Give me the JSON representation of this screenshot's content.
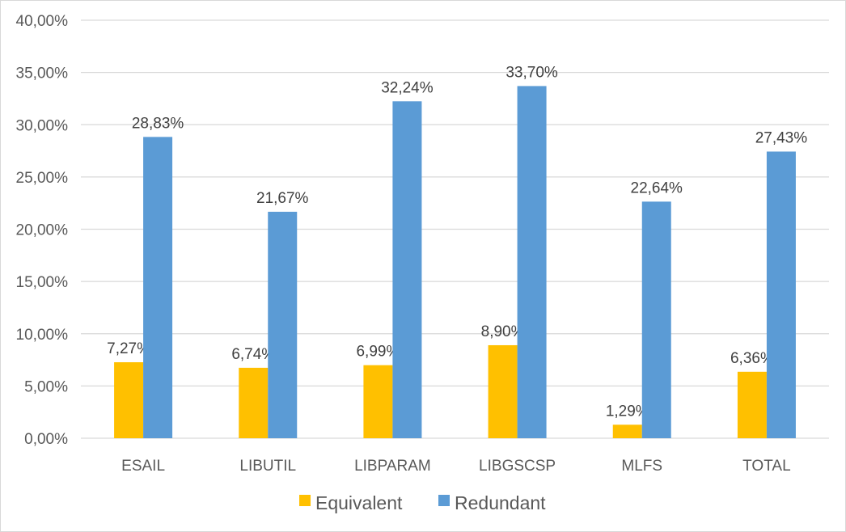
{
  "chart_data": {
    "type": "bar",
    "categories": [
      "ESAIL",
      "LIBUTIL",
      "LIBPARAM",
      "LIBGSCSP",
      "MLFS",
      "TOTAL"
    ],
    "series": [
      {
        "name": "Equivalent",
        "color": "#ffc000",
        "values": [
          7.27,
          6.74,
          6.99,
          8.9,
          1.29,
          6.36
        ],
        "labels": [
          "7,27%",
          "6,74%",
          "6,99%",
          "8,90%",
          "1,29%",
          "6,36%"
        ]
      },
      {
        "name": "Redundant",
        "color": "#5b9bd5",
        "values": [
          28.83,
          21.67,
          32.24,
          33.7,
          22.64,
          27.43
        ],
        "labels": [
          "28,83%",
          "21,67%",
          "32,24%",
          "33,70%",
          "22,64%",
          "27,43%"
        ]
      }
    ],
    "ylim": [
      0,
      40
    ],
    "yticks": [
      0,
      5,
      10,
      15,
      20,
      25,
      30,
      35,
      40
    ],
    "ytick_labels": [
      "0,00%",
      "5,00%",
      "10,00%",
      "15,00%",
      "20,00%",
      "25,00%",
      "30,00%",
      "35,00%",
      "40,00%"
    ],
    "grid": true,
    "gridline_color": "#d9d9d9",
    "legend_position": "bottom",
    "title": "",
    "xlabel": "",
    "ylabel": ""
  }
}
